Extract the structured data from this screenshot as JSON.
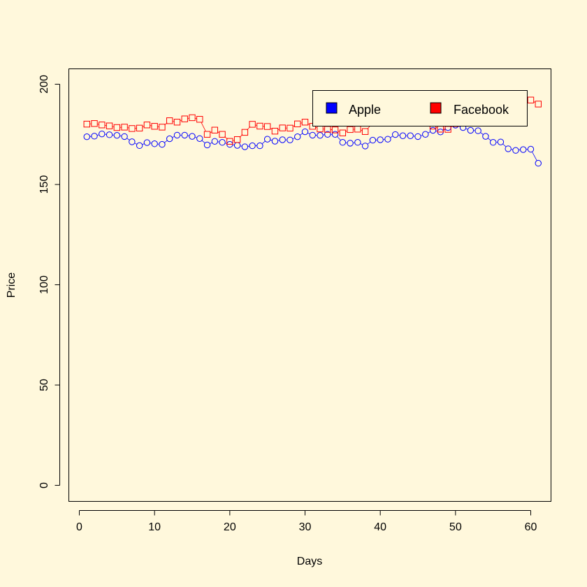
{
  "chart_data": {
    "type": "line",
    "title": "",
    "xlabel": "Days",
    "ylabel": "Price",
    "xlim": [
      0,
      63
    ],
    "ylim": [
      -8,
      208
    ],
    "xticks": [
      0,
      10,
      20,
      30,
      40,
      50,
      60
    ],
    "yticks": [
      0,
      50,
      100,
      150,
      200
    ],
    "legend_placement": "top-right",
    "x": [
      1,
      2,
      3,
      4,
      5,
      6,
      7,
      8,
      9,
      10,
      11,
      12,
      13,
      14,
      15,
      16,
      17,
      18,
      19,
      20,
      21,
      22,
      23,
      24,
      25,
      26,
      27,
      28,
      29,
      30,
      31,
      32,
      33,
      34,
      35,
      36,
      37,
      38,
      39,
      40,
      41,
      42,
      43,
      44,
      45,
      46,
      47,
      48,
      49,
      50,
      51,
      52,
      53,
      54,
      55,
      56,
      57,
      58,
      59,
      60,
      61
    ],
    "series": [
      {
        "name": "Apple",
        "color": "#0000FF",
        "marker": "circle",
        "values": [
          173.8,
          174.1,
          175.2,
          174.8,
          174.5,
          173.9,
          171.3,
          169.4,
          170.9,
          170.3,
          170.0,
          172.8,
          174.6,
          174.6,
          174.0,
          172.9,
          169.7,
          171.5,
          171.0,
          170.0,
          169.5,
          168.8,
          169.3,
          169.3,
          172.6,
          171.6,
          172.3,
          172.2,
          173.8,
          176.3,
          174.6,
          174.5,
          175.0,
          175.0,
          171.0,
          170.6,
          171.0,
          169.2,
          172.1,
          172.3,
          172.6,
          174.9,
          174.3,
          174.3,
          173.9,
          175.0,
          177.0,
          176.2,
          178.4,
          179.6,
          178.4,
          177.0,
          176.8,
          174.0,
          171.0,
          171.2,
          167.8,
          167.0,
          167.4,
          167.6,
          160.6
        ]
      },
      {
        "name": "Facebook",
        "color": "#FF0000",
        "marker": "square",
        "values": [
          180.1,
          180.4,
          179.7,
          179.2,
          178.4,
          178.6,
          177.9,
          178.1,
          179.7,
          179.0,
          178.6,
          181.8,
          181.1,
          182.7,
          183.3,
          182.5,
          175.0,
          177.1,
          175.0,
          171.5,
          172.4,
          176.0,
          180.0,
          179.1,
          178.9,
          176.6,
          178.2,
          178.1,
          180.2,
          181.1,
          179.0,
          177.7,
          177.5,
          177.2,
          175.7,
          177.4,
          177.6,
          176.4,
          180.8,
          182.1,
          182.5,
          183.5,
          183.8,
          184.2,
          183.1,
          180.7,
          179.1,
          177.6,
          177.5,
          180.4,
          181.0,
          182.2,
          183.1,
          184.4,
          186.1,
          187.4,
          188.1,
          189.6,
          191.0,
          192.1,
          190.1
        ]
      }
    ]
  }
}
